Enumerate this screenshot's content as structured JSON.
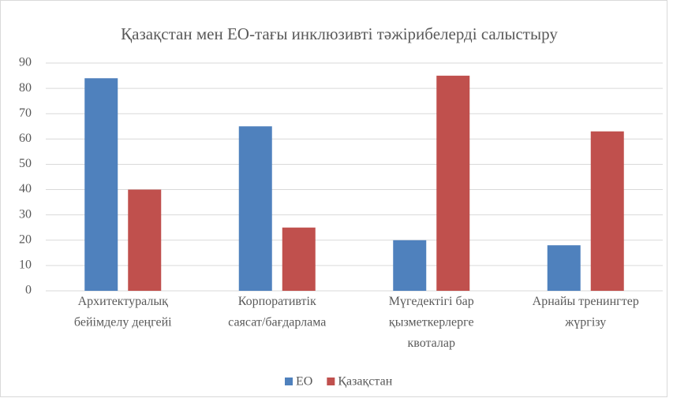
{
  "chart_data": {
    "type": "bar",
    "title": "Қазақстан мен ЕО-тағы инклюзивті тәжірибелерді салыстыру",
    "categories": [
      "Архитектуралық\nбейімделу деңгейі",
      "Корпоративтік\nсаясат/бағдарлама",
      "Мүгедектігі бар\nқызметкерлерге\nквоталар",
      "Арнайы тренингтер\nжүргізу"
    ],
    "series": [
      {
        "name": "ЕО",
        "color": "#4f81bd",
        "values": [
          84,
          65,
          20,
          18
        ]
      },
      {
        "name": "Қазақстан",
        "color": "#c0504d",
        "values": [
          40,
          25,
          85,
          63
        ]
      }
    ],
    "ylim": [
      0,
      90
    ],
    "yticks": [
      0,
      10,
      20,
      30,
      40,
      50,
      60,
      70,
      80,
      90
    ],
    "grid": true,
    "legend": "bottom"
  }
}
